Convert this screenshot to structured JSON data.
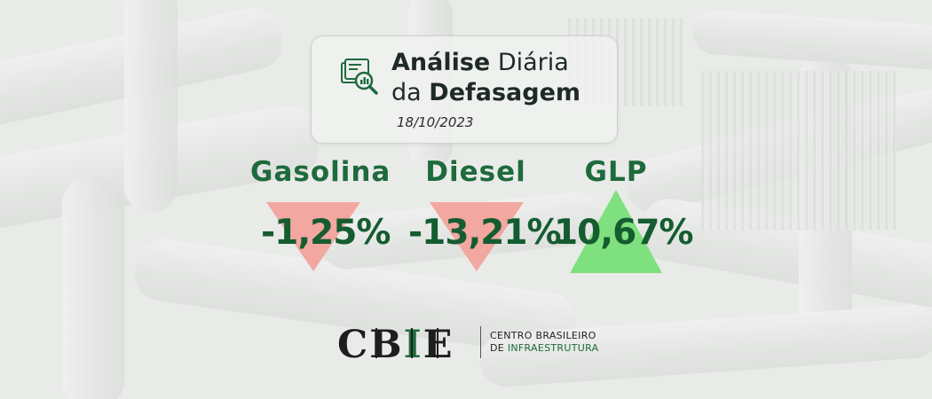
{
  "header": {
    "title_line1_bold": "Análise",
    "title_line1_rest": "Diária",
    "title_line2_pre": "da",
    "title_line2_bold": "Defasagem",
    "date": "18/10/2023",
    "icon": "analytics-report-icon"
  },
  "fuels": [
    {
      "name": "Gasolina",
      "value": "-1,25%",
      "direction": "down",
      "arrow_color": "#f2a7a0"
    },
    {
      "name": "Diesel",
      "value": "-13,21%",
      "direction": "down",
      "arrow_color": "#f2a7a0"
    },
    {
      "name": "GLP",
      "value": "10,67%",
      "direction": "up",
      "arrow_color": "#7fe07f"
    }
  ],
  "logo": {
    "letters": [
      "C",
      "B",
      "I",
      "E"
    ],
    "line1": "CENTRO BRASILEIRO",
    "line2_pre": "DE",
    "line2_green": "INFRAESTRUTURA",
    "brand_green": "#1e6a3c"
  }
}
